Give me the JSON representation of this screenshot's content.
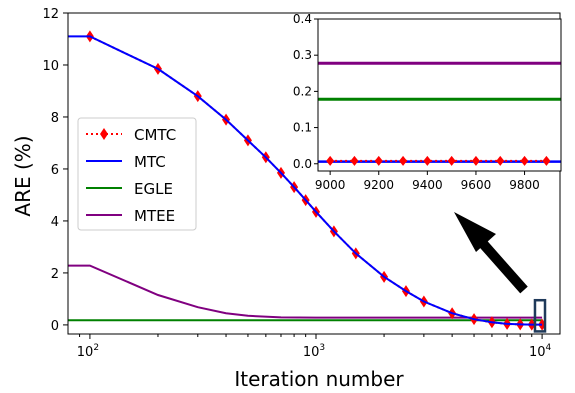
{
  "chart_data": {
    "type": "line",
    "xlabel": "Iteration number",
    "ylabel": "ARE (%)",
    "x_scale": "log",
    "xlim": [
      80,
      12000
    ],
    "ylim": [
      -0.35,
      12
    ],
    "x_ticks": [
      {
        "value": 100,
        "label": "10",
        "exp": "2"
      },
      {
        "value": 1000,
        "label": "10",
        "exp": "3"
      },
      {
        "value": 10000,
        "label": "10",
        "exp": "4"
      }
    ],
    "y_ticks": [
      0,
      2,
      4,
      6,
      8,
      10,
      12
    ],
    "legend_position": "center-left",
    "series": [
      {
        "name": "CMTC",
        "color": "#ff0000",
        "style": "dotted-diamond",
        "x": [
          100,
          200,
          300,
          400,
          500,
          600,
          700,
          800,
          900,
          1000,
          1200,
          1500,
          2000,
          2500,
          3000,
          4000,
          5000,
          6000,
          7000,
          8000,
          9000,
          10000
        ],
        "y": [
          11.1,
          9.85,
          8.8,
          7.9,
          7.1,
          6.45,
          5.85,
          5.3,
          4.8,
          4.35,
          3.6,
          2.75,
          1.85,
          1.3,
          0.9,
          0.45,
          0.22,
          0.1,
          0.04,
          0.02,
          0.01,
          0.01
        ]
      },
      {
        "name": "MTC",
        "color": "#0000ff",
        "style": "solid",
        "x": [
          80,
          100,
          200,
          300,
          400,
          500,
          600,
          700,
          800,
          900,
          1000,
          1200,
          1500,
          2000,
          2500,
          3000,
          4000,
          5000,
          6000,
          7000,
          8000,
          9000,
          10000
        ],
        "y": [
          11.1,
          11.1,
          9.85,
          8.8,
          7.9,
          7.1,
          6.45,
          5.85,
          5.3,
          4.8,
          4.35,
          3.6,
          2.75,
          1.85,
          1.3,
          0.9,
          0.45,
          0.22,
          0.1,
          0.04,
          0.02,
          0.01,
          0.01
        ]
      },
      {
        "name": "EGLE",
        "color": "#008000",
        "style": "solid",
        "x": [
          80,
          10000
        ],
        "y": [
          0.18,
          0.18
        ]
      },
      {
        "name": "MTEE",
        "color": "#800080",
        "style": "solid",
        "x": [
          80,
          100,
          200,
          300,
          400,
          500,
          700,
          1000,
          2000,
          5000,
          10000
        ],
        "y": [
          2.28,
          2.28,
          1.15,
          0.68,
          0.45,
          0.35,
          0.29,
          0.28,
          0.28,
          0.28,
          0.28
        ]
      }
    ],
    "inset": {
      "xlim": [
        8950,
        9950
      ],
      "ylim": [
        -0.02,
        0.4
      ],
      "x_ticks": [
        9000,
        9200,
        9400,
        9600,
        9800
      ],
      "y_ticks": [
        "0.0",
        "0.1",
        "0.2",
        "0.3",
        "0.4"
      ],
      "series": [
        {
          "name": "CMTC",
          "x": [
            9000,
            9100,
            9200,
            9300,
            9400,
            9500,
            9600,
            9700,
            9800,
            9890
          ],
          "y": [
            0.008,
            0.008,
            0.008,
            0.008,
            0.008,
            0.008,
            0.008,
            0.008,
            0.008,
            0.008
          ]
        },
        {
          "name": "MTC",
          "x": [
            8950,
            9950
          ],
          "y": [
            0.006,
            0.006
          ]
        },
        {
          "name": "EGLE",
          "x": [
            8950,
            9950
          ],
          "y": [
            0.178,
            0.178
          ]
        },
        {
          "name": "MTEE",
          "x": [
            8950,
            9950
          ],
          "y": [
            0.278,
            0.278
          ]
        }
      ]
    },
    "zoom_box": {
      "x": [
        9300,
        10300
      ],
      "y": [
        -0.25,
        0.95
      ]
    }
  }
}
